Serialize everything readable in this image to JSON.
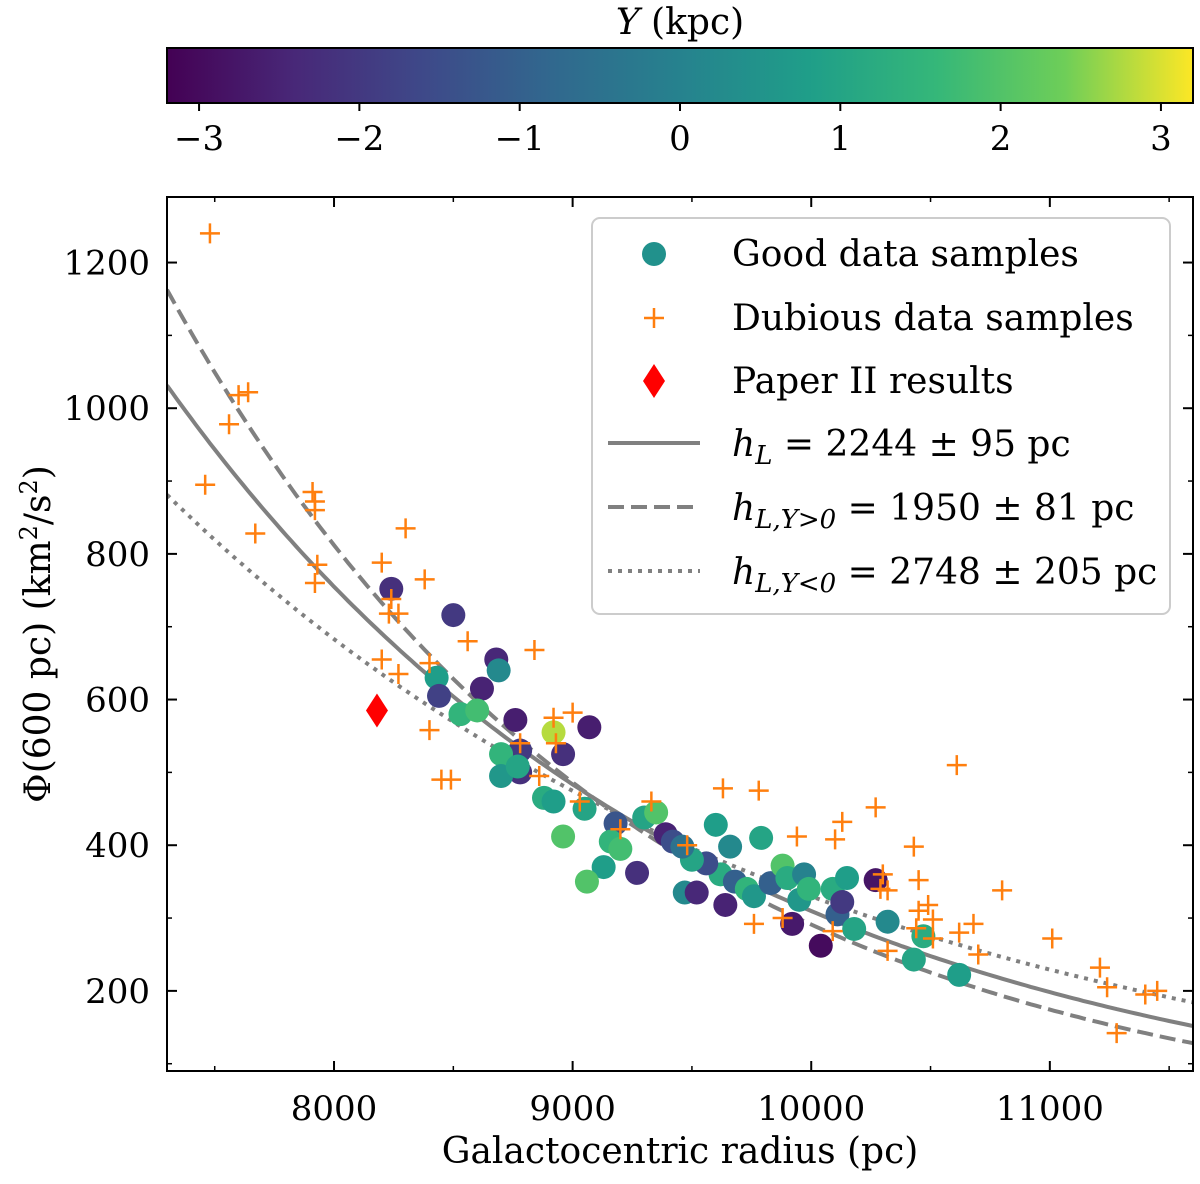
{
  "colorbar": {
    "label_var": "Y",
    "label_unit": " (kpc)",
    "ticks": [
      -3,
      -2,
      -1,
      0,
      1,
      2,
      3
    ],
    "tick_labels": [
      "−3",
      "−2",
      "−1",
      "0",
      "1",
      "2",
      "3"
    ],
    "range": [
      -3.2,
      3.2
    ],
    "colormap": "viridis"
  },
  "chart_data": {
    "type": "scatter",
    "xlabel": "Galactocentric radius (pc)",
    "ylabel": "Φ(600 pc) (km²/s²)",
    "xlim": [
      7300,
      11600
    ],
    "ylim": [
      90,
      1290
    ],
    "xticks": [
      8000,
      9000,
      10000,
      11000
    ],
    "yticks": [
      200,
      400,
      600,
      800,
      1000,
      1200
    ],
    "legend": {
      "position": "top-right",
      "good": "Good data samples",
      "dubious": "Dubious data samples",
      "paper": "Paper II results",
      "fit_all": "h_L = 2244 ± 95 pc",
      "fit_ypos": "h_L,Y>0 = 1950 ± 81 pc",
      "fit_yneg": "h_L,Y<0 = 2748 ± 205 pc"
    },
    "colors": {
      "dubious": "#ff7f0e",
      "paper": "#ff0000",
      "fit": "#808080",
      "legend_good": "#21918c"
    },
    "fits": [
      {
        "name": "all",
        "h": 2244,
        "R0": 8000,
        "phi0": 755,
        "style": "solid"
      },
      {
        "name": "Y>0",
        "h": 1950,
        "R0": 8000,
        "phi0": 812,
        "style": "dashed"
      },
      {
        "name": "Y<0",
        "h": 2748,
        "R0": 8000,
        "phi0": 683,
        "style": "dotted"
      }
    ],
    "fit_text": {
      "h": "h",
      "sub_all": "L",
      "sub_pos": "L,Y>0",
      "sub_neg": "L,Y<0",
      "eq": " = ",
      "val_all": "2244 ± 95 pc",
      "val_pos": "1950 ± 81 pc",
      "val_neg": "2748 ± 205 pc"
    },
    "paper": {
      "x": 8180,
      "y": 585
    },
    "good": [
      [
        8240,
        752,
        -2.2
      ],
      [
        8500,
        716,
        -2.0
      ],
      [
        8680,
        655,
        -2.4
      ],
      [
        8690,
        640,
        0.2
      ],
      [
        8620,
        615,
        -2.5
      ],
      [
        8430,
        630,
        0.8
      ],
      [
        8440,
        605,
        -1.8
      ],
      [
        8530,
        580,
        1.5
      ],
      [
        8600,
        585,
        1.8
      ],
      [
        8760,
        572,
        -2.6
      ],
      [
        8780,
        530,
        -2.0
      ],
      [
        8780,
        500,
        -2.2
      ],
      [
        9070,
        562,
        -2.6
      ],
      [
        8960,
        525,
        -2.2
      ],
      [
        8920,
        555,
        2.8
      ],
      [
        8700,
        525,
        1.5
      ],
      [
        8700,
        495,
        0.6
      ],
      [
        8770,
        508,
        1.0
      ],
      [
        8880,
        465,
        1.2
      ],
      [
        8920,
        460,
        0.8
      ],
      [
        9050,
        450,
        1.0
      ],
      [
        8960,
        412,
        2.0
      ],
      [
        9180,
        430,
        -1.3
      ],
      [
        9160,
        405,
        1.5
      ],
      [
        9130,
        370,
        0.8
      ],
      [
        9060,
        350,
        2.0
      ],
      [
        9200,
        395,
        1.8
      ],
      [
        9270,
        362,
        -2.2
      ],
      [
        9300,
        438,
        1.0
      ],
      [
        9350,
        445,
        2.0
      ],
      [
        9390,
        415,
        -2.5
      ],
      [
        9420,
        405,
        -1.5
      ],
      [
        9470,
        335,
        0.2
      ],
      [
        9520,
        335,
        -2.4
      ],
      [
        9600,
        428,
        0.8
      ],
      [
        9660,
        398,
        0.2
      ],
      [
        9620,
        360,
        1.2
      ],
      [
        9640,
        318,
        -2.5
      ],
      [
        9680,
        350,
        -1.0
      ],
      [
        9730,
        340,
        1.5
      ],
      [
        9790,
        410,
        1.0
      ],
      [
        9760,
        330,
        0.6
      ],
      [
        9830,
        348,
        -1.0
      ],
      [
        9880,
        372,
        2.0
      ],
      [
        9900,
        355,
        1.2
      ],
      [
        9920,
        292,
        -2.7
      ],
      [
        9950,
        325,
        0.6
      ],
      [
        9970,
        360,
        0.0
      ],
      [
        9990,
        340,
        1.5
      ],
      [
        10040,
        262,
        -3.0
      ],
      [
        10090,
        340,
        1.2
      ],
      [
        10110,
        305,
        -1.0
      ],
      [
        10130,
        322,
        -2.0
      ],
      [
        10150,
        355,
        0.8
      ],
      [
        10180,
        285,
        1.0
      ],
      [
        10270,
        352,
        -2.8
      ],
      [
        10320,
        295,
        0.2
      ],
      [
        10430,
        243,
        1.0
      ],
      [
        10470,
        275,
        1.2
      ],
      [
        10620,
        222,
        0.8
      ],
      [
        9560,
        375,
        -1.5
      ],
      [
        9500,
        380,
        1.0
      ],
      [
        9460,
        398,
        -0.5
      ]
    ],
    "dubious": [
      [
        7480,
        1240
      ],
      [
        7600,
        1018
      ],
      [
        7560,
        978
      ],
      [
        7640,
        1022
      ],
      [
        7460,
        895
      ],
      [
        7670,
        828
      ],
      [
        7910,
        885
      ],
      [
        7920,
        872
      ],
      [
        7920,
        860
      ],
      [
        7930,
        785
      ],
      [
        7920,
        760
      ],
      [
        8200,
        788
      ],
      [
        8300,
        835
      ],
      [
        8240,
        738
      ],
      [
        8230,
        718
      ],
      [
        8270,
        718
      ],
      [
        8380,
        765
      ],
      [
        8270,
        635
      ],
      [
        8200,
        655
      ],
      [
        8400,
        650
      ],
      [
        8400,
        558
      ],
      [
        8450,
        490
      ],
      [
        8490,
        490
      ],
      [
        8560,
        680
      ],
      [
        8840,
        668
      ],
      [
        8920,
        575
      ],
      [
        8930,
        540
      ],
      [
        9000,
        582
      ],
      [
        8780,
        540
      ],
      [
        8860,
        495
      ],
      [
        9030,
        460
      ],
      [
        9200,
        422
      ],
      [
        9330,
        460
      ],
      [
        9480,
        400
      ],
      [
        9630,
        478
      ],
      [
        9780,
        475
      ],
      [
        9940,
        412
      ],
      [
        10100,
        408
      ],
      [
        10130,
        432
      ],
      [
        10270,
        452
      ],
      [
        10290,
        340
      ],
      [
        10320,
        338
      ],
      [
        10300,
        360
      ],
      [
        10430,
        398
      ],
      [
        10450,
        352
      ],
      [
        10450,
        310
      ],
      [
        10490,
        318
      ],
      [
        10510,
        298
      ],
      [
        10510,
        272
      ],
      [
        10620,
        280
      ],
      [
        10680,
        292
      ],
      [
        10700,
        250
      ],
      [
        10800,
        338
      ],
      [
        11010,
        272
      ],
      [
        11210,
        232
      ],
      [
        11240,
        205
      ],
      [
        11280,
        142
      ],
      [
        11400,
        195
      ],
      [
        11450,
        200
      ],
      [
        10610,
        510
      ],
      [
        10320,
        255
      ],
      [
        10440,
        286
      ],
      [
        10090,
        282
      ],
      [
        9880,
        300
      ],
      [
        9760,
        292
      ]
    ]
  }
}
